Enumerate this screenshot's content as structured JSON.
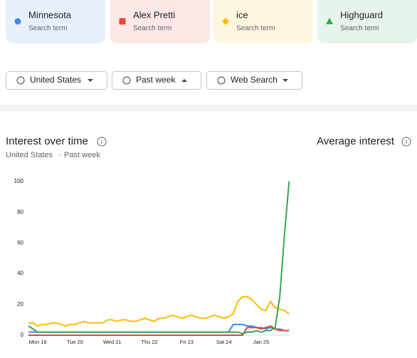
{
  "terms": [
    "Search term",
    "Search term",
    "Search term",
    "Search term"
  ],
  "filters": [
    "United States",
    "Past week",
    "Web Search"
  ],
  "section": {
    "title": "Interest over time",
    "region": "United States",
    "separator": "·",
    "period": "Past week"
  },
  "average": {
    "title": "Average interest"
  },
  "chart_data": {
    "type": "line",
    "categories": [
      null,
      null,
      "Mon 19",
      null,
      null,
      null,
      null,
      null,
      null,
      null,
      "Tue 20",
      null,
      null,
      null,
      null,
      null,
      null,
      null,
      "Wed 21",
      null,
      null,
      null,
      null,
      null,
      null,
      null,
      "Thu 22",
      null,
      null,
      null,
      null,
      null,
      null,
      null,
      "Fri 23",
      null,
      null,
      null,
      null,
      null,
      null,
      null,
      "Sat 24",
      null,
      null,
      null,
      null,
      null,
      null,
      null,
      "Jan 25",
      null,
      null,
      null,
      null,
      null,
      null
    ],
    "series": [
      {
        "name": "Minnesota",
        "color": "#4285f4",
        "values": [
          2,
          2,
          2,
          2,
          2,
          2,
          2,
          2,
          2,
          2,
          2,
          2,
          2,
          2,
          2,
          2,
          2,
          2,
          2,
          2,
          2,
          2,
          2,
          2,
          2,
          2,
          2,
          2,
          2,
          2,
          2,
          2,
          2,
          2,
          2,
          2,
          2,
          2,
          2,
          2,
          2,
          2,
          2,
          2,
          7,
          7,
          7,
          6,
          6,
          5,
          5,
          4,
          5,
          4,
          4,
          3,
          3
        ]
      },
      {
        "name": "Alex Pretti",
        "color": "#ea4335",
        "values": [
          0,
          0,
          0,
          0,
          0,
          0,
          0,
          0,
          0,
          0,
          0,
          0,
          0,
          0,
          0,
          0,
          0,
          0,
          0,
          0,
          0,
          0,
          0,
          0,
          0,
          0,
          0,
          0,
          0,
          0,
          0,
          0,
          0,
          0,
          0,
          0,
          0,
          0,
          0,
          0,
          0,
          0,
          0,
          0,
          0,
          0,
          0,
          5,
          5,
          5,
          4,
          5,
          6,
          4,
          3,
          3,
          3
        ]
      },
      {
        "name": "ice",
        "color": "#fbbc04",
        "values": [
          8,
          8,
          6,
          7,
          7,
          8,
          8,
          7,
          6,
          7,
          7,
          8,
          9,
          8,
          8,
          8,
          8,
          10,
          10,
          9,
          10,
          10,
          9,
          9,
          10,
          11,
          10,
          9,
          11,
          11,
          12,
          13,
          12,
          11,
          12,
          13,
          12,
          11,
          11,
          12,
          13,
          12,
          11,
          12,
          14,
          22,
          25,
          25,
          23,
          20,
          17,
          16,
          22,
          18,
          17,
          16,
          14
        ]
      },
      {
        "name": "Highguard",
        "color": "#34a853",
        "values": [
          6,
          4,
          2,
          2,
          2,
          2,
          2,
          2,
          2,
          2,
          2,
          2,
          2,
          2,
          2,
          2,
          2,
          2,
          2,
          2,
          2,
          2,
          2,
          2,
          2,
          2,
          2,
          2,
          2,
          2,
          2,
          2,
          2,
          2,
          2,
          2,
          2,
          2,
          2,
          2,
          2,
          2,
          2,
          2,
          2,
          2,
          1,
          2,
          2,
          3,
          2,
          3,
          3,
          5,
          25,
          65,
          100
        ]
      }
    ],
    "ylim": [
      0,
      100
    ],
    "yticks": [
      0,
      20,
      40,
      60,
      80,
      100
    ]
  }
}
